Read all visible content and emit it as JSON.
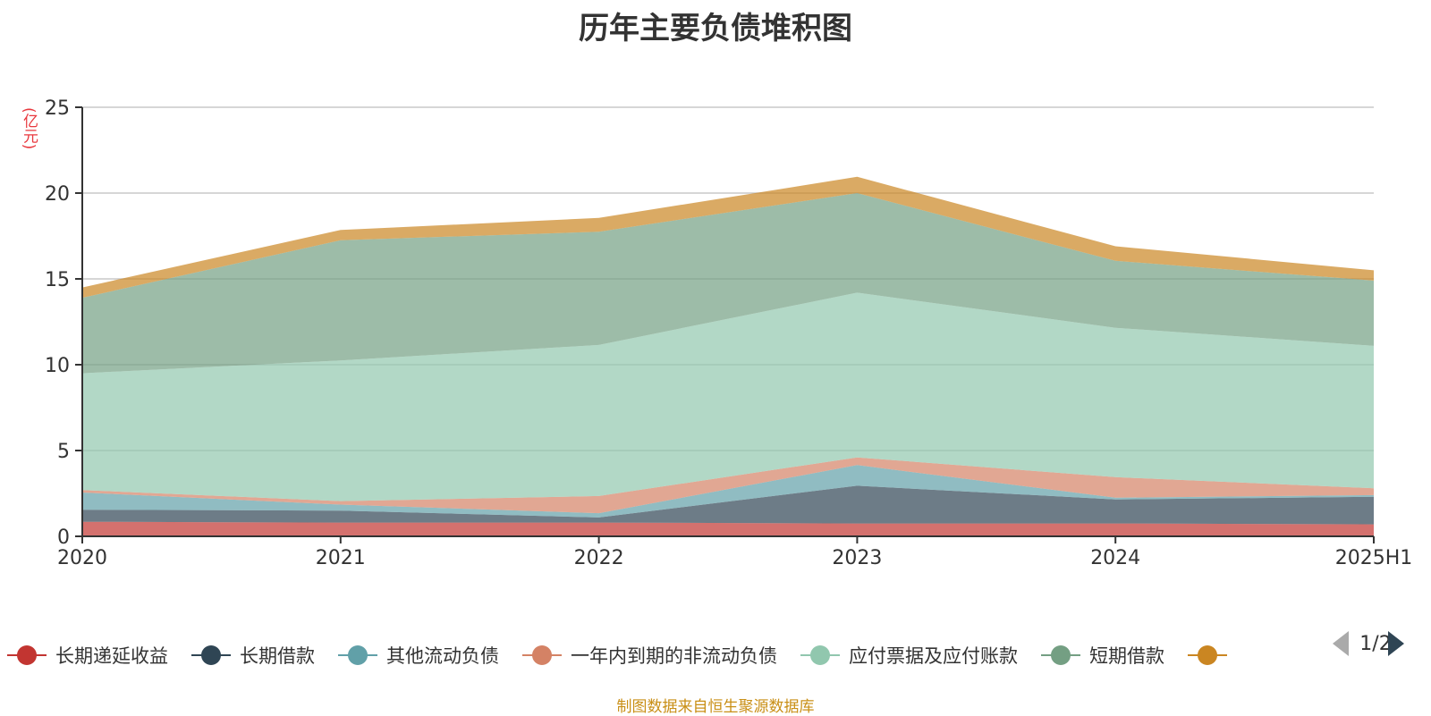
{
  "chart_data": {
    "type": "area",
    "title": "历年主要负债堆积图",
    "ylabel": "(亿元)",
    "xlabel": "",
    "categories": [
      "2020",
      "2021",
      "2022",
      "2023",
      "2024",
      "2025H1"
    ],
    "ylim": [
      0,
      25
    ],
    "yticks": [
      "0",
      "5",
      "10",
      "15",
      "20",
      "25"
    ],
    "stacked": true,
    "grid": true,
    "legend_position": "bottom",
    "series": [
      {
        "name": "长期递延收益",
        "color": "#c23531",
        "values": [
          0.85,
          0.8,
          0.8,
          0.75,
          0.75,
          0.7
        ]
      },
      {
        "name": "长期借款",
        "color": "#2f4554",
        "values": [
          0.7,
          0.7,
          0.3,
          2.2,
          1.4,
          1.6
        ]
      },
      {
        "name": "其他流动负债",
        "color": "#61a0a8",
        "values": [
          1.0,
          0.35,
          0.25,
          1.2,
          0.1,
          0.1
        ]
      },
      {
        "name": "一年内到期的非流动负债",
        "color": "#d48265",
        "values": [
          0.15,
          0.2,
          1.0,
          0.45,
          1.2,
          0.4
        ]
      },
      {
        "name": "应付票据及应付账款",
        "color": "#91c7ae",
        "values": [
          6.8,
          8.2,
          8.8,
          9.6,
          8.7,
          8.3
        ]
      },
      {
        "name": "短期借款",
        "color": "#749f83",
        "values": [
          4.4,
          7.0,
          6.6,
          5.8,
          3.9,
          3.8
        ]
      },
      {
        "name": "",
        "color": "#ca8622",
        "values": [
          0.6,
          0.6,
          0.8,
          0.95,
          0.85,
          0.6
        ]
      }
    ]
  },
  "legend": {
    "pager": "1/2"
  },
  "footer": {
    "source": "制图数据来自恒生聚源数据库"
  }
}
